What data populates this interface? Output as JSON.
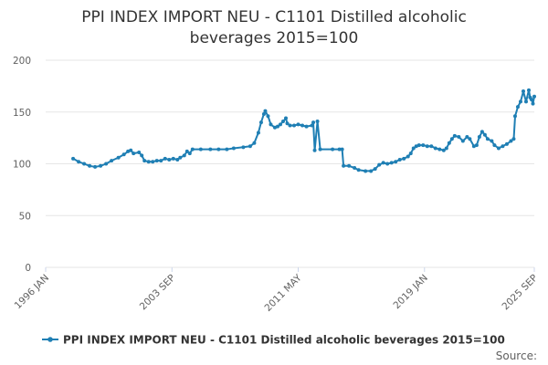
{
  "chart_data": {
    "type": "line",
    "title_line1": "PPI INDEX IMPORT NEU - C1101 Distilled alcoholic",
    "title_line2": "beverages 2015=100",
    "ylim": [
      0,
      200
    ],
    "y_ticks": [
      "0",
      "50",
      "100",
      "150",
      "200"
    ],
    "x_range": [
      "1996-01",
      "2025-09"
    ],
    "x_ticks": [
      "1996 JAN",
      "2003 SEP",
      "2011 MAY",
      "2019 JAN",
      "2025 SEP"
    ],
    "grid": "horizontal",
    "legend_position": "bottom",
    "series": [
      {
        "name": "PPI INDEX IMPORT NEU - C1101 Distilled alcoholic beverages 2015=100",
        "color": "#1f7fb4",
        "points": [
          [
            "1997-09",
            105
          ],
          [
            "1998-01",
            102
          ],
          [
            "1998-05",
            100
          ],
          [
            "1998-09",
            98
          ],
          [
            "1999-01",
            97
          ],
          [
            "1999-05",
            98
          ],
          [
            "1999-09",
            100
          ],
          [
            "2000-01",
            103
          ],
          [
            "2000-06",
            106
          ],
          [
            "2000-10",
            109
          ],
          [
            "2001-01",
            112
          ],
          [
            "2001-03",
            113
          ],
          [
            "2001-05",
            110
          ],
          [
            "2001-09",
            111
          ],
          [
            "2001-11",
            108
          ],
          [
            "2002-01",
            103
          ],
          [
            "2002-04",
            102
          ],
          [
            "2002-07",
            102
          ],
          [
            "2002-10",
            103
          ],
          [
            "2003-01",
            103
          ],
          [
            "2003-04",
            105
          ],
          [
            "2003-07",
            104
          ],
          [
            "2003-10",
            105
          ],
          [
            "2004-01",
            104
          ],
          [
            "2004-03",
            106
          ],
          [
            "2004-06",
            108
          ],
          [
            "2004-08",
            112
          ],
          [
            "2004-10",
            110
          ],
          [
            "2004-12",
            114
          ],
          [
            "2005-06",
            114
          ],
          [
            "2006-01",
            114
          ],
          [
            "2006-07",
            114
          ],
          [
            "2007-01",
            114
          ],
          [
            "2007-06",
            115
          ],
          [
            "2008-01",
            116
          ],
          [
            "2008-06",
            117
          ],
          [
            "2008-09",
            120
          ],
          [
            "2008-12",
            130
          ],
          [
            "2009-02",
            140
          ],
          [
            "2009-04",
            148
          ],
          [
            "2009-05",
            151
          ],
          [
            "2009-07",
            146
          ],
          [
            "2009-09",
            138
          ],
          [
            "2009-12",
            135
          ],
          [
            "2010-02",
            136
          ],
          [
            "2010-04",
            138
          ],
          [
            "2010-06",
            141
          ],
          [
            "2010-08",
            144
          ],
          [
            "2010-09",
            139
          ],
          [
            "2010-11",
            137
          ],
          [
            "2011-02",
            137
          ],
          [
            "2011-05",
            138
          ],
          [
            "2011-08",
            137
          ],
          [
            "2011-11",
            136
          ],
          [
            "2012-03",
            137
          ],
          [
            "2012-04",
            140
          ],
          [
            "2012-05",
            113
          ],
          [
            "2012-07",
            141
          ],
          [
            "2012-09",
            114
          ],
          [
            "2013-06",
            114
          ],
          [
            "2013-11",
            114
          ],
          [
            "2014-01",
            114
          ],
          [
            "2014-02",
            98
          ],
          [
            "2014-06",
            98
          ],
          [
            "2014-10",
            96
          ],
          [
            "2015-01",
            94
          ],
          [
            "2015-06",
            93
          ],
          [
            "2015-10",
            93
          ],
          [
            "2016-01",
            95
          ],
          [
            "2016-04",
            99
          ],
          [
            "2016-07",
            101
          ],
          [
            "2016-10",
            100
          ],
          [
            "2017-01",
            101
          ],
          [
            "2017-04",
            102
          ],
          [
            "2017-07",
            104
          ],
          [
            "2017-10",
            105
          ],
          [
            "2018-01",
            107
          ],
          [
            "2018-03",
            110
          ],
          [
            "2018-05",
            115
          ],
          [
            "2018-07",
            117
          ],
          [
            "2018-09",
            118
          ],
          [
            "2018-12",
            118
          ],
          [
            "2019-03",
            117
          ],
          [
            "2019-06",
            117
          ],
          [
            "2019-09",
            115
          ],
          [
            "2019-12",
            114
          ],
          [
            "2020-03",
            113
          ],
          [
            "2020-05",
            115
          ],
          [
            "2020-07",
            120
          ],
          [
            "2020-09",
            124
          ],
          [
            "2020-11",
            127
          ],
          [
            "2021-02",
            126
          ],
          [
            "2021-05",
            122
          ],
          [
            "2021-08",
            126
          ],
          [
            "2021-10",
            124
          ],
          [
            "2022-01",
            117
          ],
          [
            "2022-03",
            118
          ],
          [
            "2022-05",
            126
          ],
          [
            "2022-07",
            131
          ],
          [
            "2022-09",
            128
          ],
          [
            "2022-11",
            124
          ],
          [
            "2023-02",
            122
          ],
          [
            "2023-04",
            118
          ],
          [
            "2023-07",
            115
          ],
          [
            "2023-10",
            117
          ],
          [
            "2024-01",
            119
          ],
          [
            "2024-04",
            122
          ],
          [
            "2024-06",
            124
          ],
          [
            "2024-07",
            146
          ],
          [
            "2024-09",
            155
          ],
          [
            "2024-11",
            160
          ],
          [
            "2025-01",
            170
          ],
          [
            "2025-03",
            160
          ],
          [
            "2025-05",
            171
          ],
          [
            "2025-06",
            164
          ],
          [
            "2025-07",
            162
          ],
          [
            "2025-08",
            158
          ],
          [
            "2025-09",
            165
          ]
        ]
      }
    ]
  },
  "footer": {
    "source_label": "Source:"
  }
}
